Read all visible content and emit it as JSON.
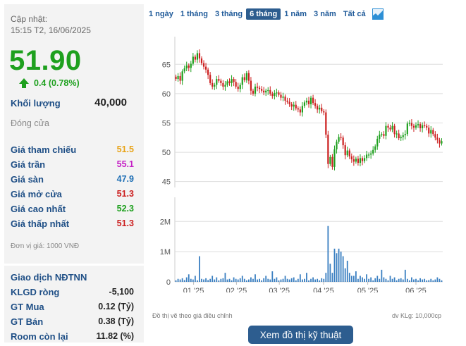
{
  "info": {
    "updated_label": "Cập nhật:",
    "updated_time": "15:15 T2, 16/06/2025",
    "price": "51.90",
    "change": "0.4 (0.78%)",
    "volume_label": "Khối lượng",
    "volume_value": "40,000",
    "status": "Đóng cửa",
    "unit_note": "Đơn vị giá: 1000 VNĐ"
  },
  "prices": [
    {
      "label": "Giá tham chiếu",
      "value": "51.5",
      "color": "#e8a317"
    },
    {
      "label": "Giá trần",
      "value": "55.1",
      "color": "#c51fc5"
    },
    {
      "label": "Giá sàn",
      "value": "47.9",
      "color": "#1f6fb5"
    },
    {
      "label": "Giá mở cửa",
      "value": "51.3",
      "color": "#cc1f1f"
    },
    {
      "label": "Giá cao nhất",
      "value": "52.3",
      "color": "#1ea01e"
    },
    {
      "label": "Giá thấp nhất",
      "value": "51.3",
      "color": "#cc1f1f"
    }
  ],
  "foreign": {
    "title": "Giao dịch NĐTNN",
    "rows": [
      {
        "label": "KLGD ròng",
        "value": "-5,100"
      },
      {
        "label": "GT Mua",
        "value": "0.12 (Tỷ)"
      },
      {
        "label": "GT Bán",
        "value": "0.38 (Tỷ)"
      },
      {
        "label": "Room còn lại",
        "value": "11.82 (%)"
      }
    ]
  },
  "tabs": [
    "1 ngày",
    "1 tháng",
    "3 tháng",
    "6 tháng",
    "1 năm",
    "3 năm",
    "Tất cả"
  ],
  "active_tab": "6 tháng",
  "chart_note": "Đồ thị vẽ theo giá điều chỉnh",
  "volume_unit_note": "dv KLg: 10,000cp",
  "tech_button": "Xem đồ thị kỹ thuật",
  "colors": {
    "up": "#1ea01e",
    "down": "#cc1f1f",
    "accent": "#2d5d8f",
    "label": "#1f4f86"
  },
  "chart_data": [
    {
      "type": "candlestick",
      "x_ticks": [
        "01 '25",
        "02 '25",
        "03 '25",
        "04 '25",
        "05 '25",
        "06 '25"
      ],
      "y_ticks": [
        45,
        50,
        55,
        60,
        65
      ],
      "ylim": [
        44,
        69
      ],
      "close": [
        62.5,
        63.0,
        62.2,
        63.8,
        64.3,
        64.8,
        64.4,
        65.1,
        66.3,
        65.8,
        66.9,
        66.0,
        65.2,
        64.6,
        64.1,
        63.2,
        61.8,
        61.2,
        61.5,
        62.5,
        62.2,
        61.8,
        61.2,
        61.5,
        62.1,
        61.8,
        62.5,
        62.0,
        61.2,
        60.8,
        61.5,
        62.8,
        62.3,
        63.5,
        62.2,
        60.5,
        60.0,
        61.2,
        61.0,
        60.8,
        60.5,
        60.2,
        60.5,
        60.6,
        60.0,
        59.6,
        60.1,
        60.2,
        59.8,
        59.3,
        59.5,
        58.8,
        58.6,
        58.2,
        57.8,
        58.1,
        57.5,
        57.3,
        56.8,
        57.9,
        58.5,
        58.8,
        58.2,
        59.3,
        58.4,
        57.9,
        57.3,
        57.6,
        57.0,
        56.8,
        53.0,
        48.0,
        49.2,
        47.5,
        50.5,
        51.8,
        52.6,
        52.5,
        51.2,
        49.5,
        50.3,
        49.3,
        48.8,
        48.4,
        48.9,
        48.2,
        49.0,
        48.5,
        49.0,
        49.6,
        49.6,
        49.8,
        50.4,
        51.0,
        52.3,
        53.0,
        53.1,
        52.8,
        54.5,
        54.2,
        53.9,
        54.5,
        53.1,
        53.2,
        52.4,
        52.6,
        52.9,
        53.1,
        54.9,
        55.0,
        54.5,
        54.2,
        54.6,
        54.8,
        54.1,
        54.6,
        54.5,
        54.2,
        53.2,
        53.8,
        53.1,
        52.5,
        52.1,
        51.5,
        51.9
      ],
      "volume_ticks": [
        "0",
        "1M",
        "2M"
      ],
      "volume_max": 2.8,
      "volume": [
        0.05,
        0.1,
        0.08,
        0.12,
        0.06,
        0.15,
        0.25,
        0.1,
        0.08,
        0.2,
        0.05,
        0.85,
        0.1,
        0.08,
        0.12,
        0.06,
        0.1,
        0.2,
        0.08,
        0.15,
        0.05,
        0.1,
        0.12,
        0.3,
        0.08,
        0.1,
        0.05,
        0.15,
        0.1,
        0.08,
        0.12,
        0.2,
        0.1,
        0.05,
        0.08,
        0.15,
        0.1,
        0.25,
        0.08,
        0.1,
        0.05,
        0.12,
        0.2,
        0.1,
        0.08,
        0.35,
        0.1,
        0.15,
        0.05,
        0.08,
        0.1,
        0.2,
        0.1,
        0.08,
        0.12,
        0.15,
        0.05,
        0.1,
        0.25,
        0.08,
        0.1,
        0.3,
        0.05,
        0.1,
        0.15,
        0.08,
        0.1,
        0.05,
        0.12,
        0.1,
        0.3,
        1.85,
        0.6,
        0.3,
        1.1,
        0.95,
        1.1,
        1.0,
        0.85,
        0.45,
        0.7,
        0.3,
        0.2,
        0.2,
        0.35,
        0.1,
        0.2,
        0.15,
        0.1,
        0.25,
        0.1,
        0.15,
        0.05,
        0.12,
        0.2,
        0.1,
        0.4,
        0.15,
        0.1,
        0.05,
        0.2,
        0.1,
        0.15,
        0.05,
        0.1,
        0.12,
        0.08,
        0.4,
        0.1,
        0.05,
        0.15,
        0.08,
        0.1,
        0.05,
        0.12,
        0.08,
        0.1,
        0.05,
        0.06,
        0.1,
        0.05,
        0.08,
        0.15,
        0.1,
        0.05
      ]
    }
  ]
}
